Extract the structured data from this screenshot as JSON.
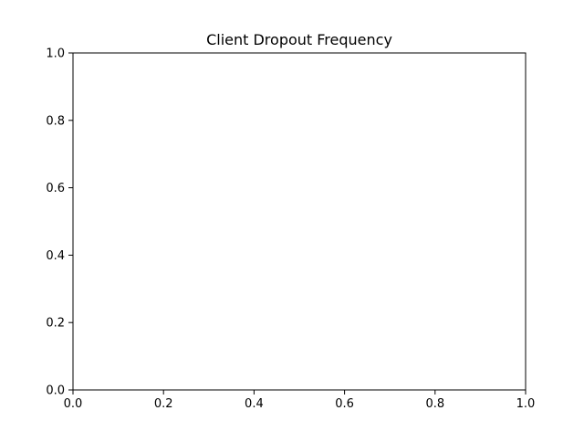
{
  "chart_data": {
    "type": "scatter",
    "title": "Client Dropout Frequency",
    "xlabel": "",
    "ylabel": "",
    "xlim": [
      0.0,
      1.0
    ],
    "ylim": [
      0.0,
      1.0
    ],
    "xticks": [
      0.0,
      0.2,
      0.4,
      0.6,
      0.8,
      1.0
    ],
    "yticks": [
      0.0,
      0.2,
      0.4,
      0.6,
      0.8,
      1.0
    ],
    "xtick_labels": [
      "0.0",
      "0.2",
      "0.4",
      "0.6",
      "0.8",
      "1.0"
    ],
    "ytick_labels": [
      "0.0",
      "0.2",
      "0.4",
      "0.6",
      "0.8",
      "1.0"
    ],
    "grid": false,
    "series": []
  },
  "colors": {
    "axis": "#000000",
    "background": "#ffffff"
  }
}
